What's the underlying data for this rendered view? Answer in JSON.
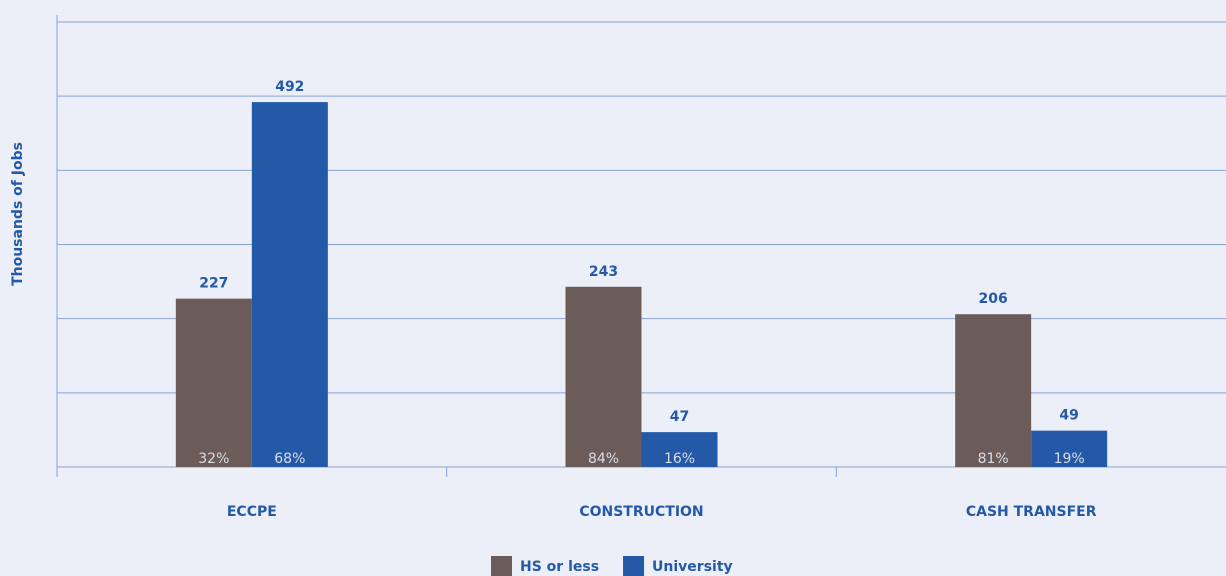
{
  "chart_data": {
    "type": "bar",
    "y_label": "Thousands of Jobs",
    "categories": [
      "ECCPE",
      "CONSTRUCTION",
      "CASH TRANSFER"
    ],
    "series": [
      {
        "name": "HS or less",
        "color": "#6b5c5a",
        "values": [
          227,
          243,
          206
        ],
        "share_labels": [
          "32%",
          "84%",
          "81%"
        ]
      },
      {
        "name": "University",
        "color": "#2459a8",
        "values": [
          492,
          47,
          49
        ],
        "share_labels": [
          "68%",
          "16%",
          "19%"
        ]
      }
    ],
    "ylim": [
      0,
      600
    ],
    "yticks": [
      0,
      100,
      200,
      300,
      400,
      500,
      600
    ],
    "grid": true
  }
}
